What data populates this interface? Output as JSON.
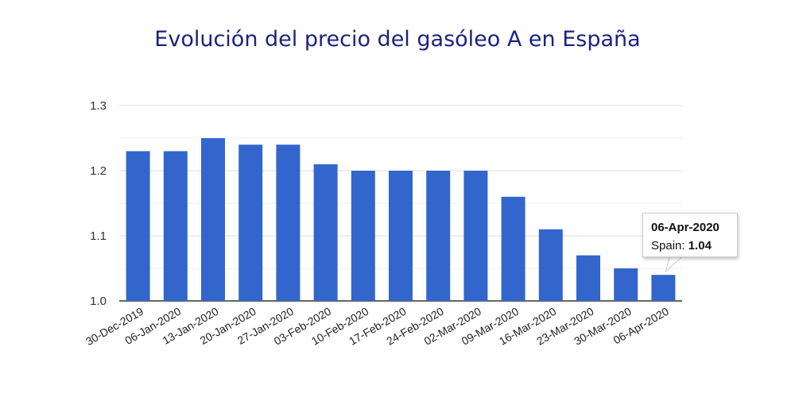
{
  "colors": {
    "bar": "#3366cc",
    "grid": "#dddddd",
    "axis": "#333333",
    "title": "#1a237e"
  },
  "chart_data": {
    "type": "bar",
    "title": "Evolución del precio del gasóleo A en España",
    "xlabel": "",
    "ylabel": "",
    "ylim": [
      1.0,
      1.3
    ],
    "yticks": [
      "1.0",
      "1.1",
      "1.2",
      "1.3"
    ],
    "grid": true,
    "categories": [
      "30-Dec-2019",
      "06-Jan-2020",
      "13-Jan-2020",
      "20-Jan-2020",
      "27-Jan-2020",
      "03-Feb-2020",
      "10-Feb-2020",
      "17-Feb-2020",
      "24-Feb-2020",
      "02-Mar-2020",
      "09-Mar-2020",
      "16-Mar-2020",
      "23-Mar-2020",
      "30-Mar-2020",
      "06-Apr-2020"
    ],
    "series": [
      {
        "values": [
          1.23,
          1.23,
          1.25,
          1.24,
          1.24,
          1.21,
          1.2,
          1.2,
          1.2,
          1.2,
          1.16,
          1.11,
          1.07,
          1.05,
          1.04
        ]
      }
    ]
  },
  "tooltip": {
    "date": "06-Apr-2020",
    "label": "Spain:",
    "value": "1.04"
  }
}
